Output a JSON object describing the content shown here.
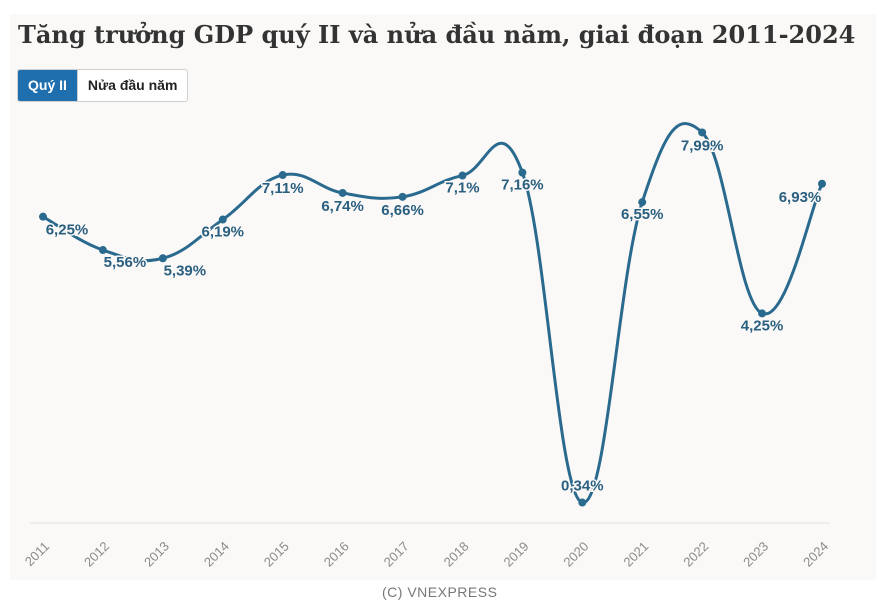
{
  "chart_data": {
    "type": "line",
    "title": "Tăng trưởng GDP quý II và nửa đầu năm, giai đoạn 2011-2024",
    "tabs": [
      {
        "label": "Quý II",
        "active": true
      },
      {
        "label": "Nửa đầu năm",
        "active": false
      }
    ],
    "categories": [
      "2011",
      "2012",
      "2013",
      "2014",
      "2015",
      "2016",
      "2017",
      "2018",
      "2019",
      "2020",
      "2021",
      "2022",
      "2023",
      "2024"
    ],
    "series": [
      {
        "name": "Quý II",
        "values": [
          6.25,
          5.56,
          5.39,
          6.19,
          7.11,
          6.74,
          6.66,
          7.1,
          7.16,
          0.34,
          6.55,
          7.99,
          4.25,
          6.93
        ],
        "labels": [
          "6,25%",
          "5,56%",
          "5,39%",
          "6,19%",
          "7,11%",
          "6,74%",
          "6,66%",
          "7,1%",
          "7,16%",
          "0,34%",
          "6,55%",
          "7,99%",
          "4,25%",
          "6,93%"
        ]
      }
    ],
    "ylim": [
      0,
      8.5
    ],
    "xlabel": "",
    "ylabel": "",
    "grid": false,
    "line_color": "#2a6a8e",
    "label_color": "#2a5f80"
  },
  "footer": "(C) VNEXPRESS"
}
